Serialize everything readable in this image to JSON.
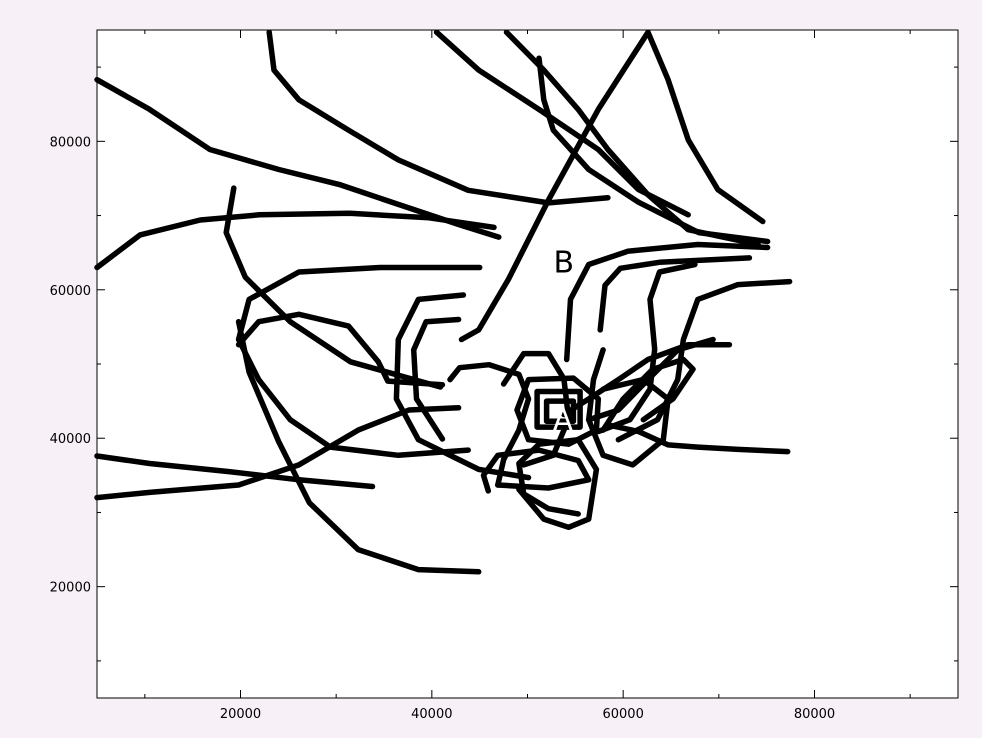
{
  "chart_data": {
    "type": "line",
    "color": "#000000",
    "xlim": [
      5000,
      95000
    ],
    "ylim": [
      5000,
      95000
    ],
    "xticks": [
      20000,
      40000,
      60000,
      80000
    ],
    "yticks": [
      20000,
      40000,
      60000,
      80000
    ],
    "xminor": [
      10000,
      30000,
      50000,
      70000,
      90000
    ],
    "yminor": [
      10000,
      30000,
      50000,
      70000,
      90000
    ],
    "annotations": [
      {
        "text": "A",
        "x": 53700,
        "y": 42500,
        "color": "#ffffff"
      },
      {
        "text": "B",
        "x": 53800,
        "y": 63800,
        "color": "#000000"
      }
    ],
    "series": [
      {
        "x": [
          5000,
          10500,
          16800,
          24000,
          30300,
          36500,
          42800,
          47000
        ],
        "values": [
          88300,
          84300,
          78900,
          76200,
          74200,
          71500,
          68800,
          67100
        ]
      },
      {
        "x": [
          5000,
          9500,
          15800,
          22000,
          31400,
          39700,
          46500
        ],
        "values": [
          63000,
          67400,
          69400,
          70100,
          70300,
          69700,
          68400
        ]
      },
      {
        "x": [
          23000,
          23500,
          26100,
          31300,
          36500,
          43800,
          52200,
          58400
        ],
        "values": [
          94700,
          89600,
          85600,
          81500,
          77500,
          73400,
          71700,
          72400
        ]
      },
      {
        "x": [
          40500,
          44900,
          51200,
          57400,
          61600,
          66800
        ],
        "values": [
          94700,
          89600,
          84300,
          78900,
          73500,
          70100
        ]
      },
      {
        "x": [
          47800,
          51700,
          55300,
          58400,
          62600,
          66800,
          74100
        ],
        "values": [
          94700,
          89600,
          84300,
          78900,
          72800,
          68100,
          66100
        ]
      },
      {
        "x": [
          51200,
          51700,
          52700,
          56400,
          61600,
          67900,
          75100
        ],
        "values": [
          91200,
          85600,
          81500,
          76200,
          71800,
          67700,
          66500
        ]
      },
      {
        "x": [
          43100,
          44900,
          48000,
          52200,
          57400,
          62600,
          64700,
          66800,
          69900,
          74600
        ],
        "values": [
          53300,
          54600,
          61400,
          72100,
          84300,
          94700,
          88300,
          80200,
          73500,
          69200
        ]
      },
      {
        "x": [
          54100,
          54500,
          56400,
          60500,
          67800,
          75100
        ],
        "values": [
          50600,
          58700,
          63400,
          65200,
          66100,
          65700
        ]
      },
      {
        "x": [
          57600,
          58100,
          59700,
          63800,
          73200
        ],
        "values": [
          54600,
          60600,
          62900,
          63700,
          64300
        ]
      },
      {
        "x": [
          19300,
          18500,
          20500,
          25200,
          31500,
          40900
        ],
        "values": [
          73700,
          67700,
          61700,
          55700,
          50300,
          46900
        ]
      },
      {
        "x": [
          45000,
          34600,
          26100,
          20900,
          19800,
          21900,
          25200,
          29400,
          36500,
          43800
        ],
        "values": [
          63000,
          63000,
          62400,
          58700,
          53300,
          47900,
          42500,
          38800,
          37700,
          38400
        ]
      },
      {
        "x": [
          19800,
          21900,
          26100,
          31300,
          34400,
          35400,
          41100
        ],
        "values": [
          52600,
          55700,
          56700,
          55100,
          50300,
          47700,
          47200
        ]
      },
      {
        "x": [
          19800,
          20900,
          24000,
          27200,
          32300,
          38600,
          44900
        ],
        "values": [
          55700,
          48900,
          39500,
          31300,
          25000,
          22300,
          22000
        ]
      },
      {
        "x": [
          5000,
          10500,
          18800,
          26100,
          33800
        ],
        "values": [
          37600,
          36600,
          35500,
          34400,
          33500
        ]
      },
      {
        "x": [
          5000,
          10500,
          19800,
          26100,
          32300,
          37600,
          42800
        ],
        "values": [
          32000,
          32700,
          33700,
          36400,
          41100,
          43800,
          44100
        ]
      },
      {
        "x": [
          43300,
          38600,
          36500,
          36300,
          38600,
          44900,
          50100
        ],
        "values": [
          59300,
          58700,
          53300,
          45300,
          39800,
          35800,
          34700
        ]
      },
      {
        "x": [
          42800,
          39400,
          38100,
          38400,
          41100
        ],
        "values": [
          56000,
          55700,
          51900,
          45300,
          39900
        ]
      },
      {
        "x": [
          77400,
          72000,
          67800,
          66300,
          65700,
          63600,
          59500
        ],
        "values": [
          61100,
          60700,
          58700,
          53300,
          47900,
          42500,
          39800
        ]
      },
      {
        "x": [
          67500,
          63800,
          62800,
          63300,
          62800,
          60700,
          57400
        ],
        "values": [
          63400,
          62400,
          58700,
          52000,
          46600,
          42500,
          40900
        ]
      },
      {
        "x": [
          77200,
          72000,
          67800,
          64700,
          61600,
          58400
        ],
        "values": [
          38200,
          38500,
          38800,
          39100,
          40900,
          41800
        ]
      },
      {
        "x": [
          71100,
          66800,
          62600,
          59500,
          56400,
          53800
        ],
        "values": [
          52600,
          52600,
          50600,
          47900,
          45300,
          43200
        ]
      },
      {
        "x": [
          69400,
          65700,
          62600,
          59500,
          56400
        ],
        "values": [
          53300,
          51900,
          47900,
          43800,
          42500
        ]
      },
      {
        "x": [
          55300,
          52200,
          49600,
          49100,
          51200,
          55300,
          57200,
          56400,
          54300,
          51700,
          49100
        ],
        "values": [
          29800,
          30500,
          32500,
          36600,
          39200,
          39800,
          35800,
          29100,
          28000,
          29100,
          33100
        ]
      },
      {
        "x": [
          45900,
          45400,
          46900,
          51200,
          55300,
          56400,
          52200,
          46900
        ],
        "values": [
          32900,
          35000,
          37700,
          38400,
          37000,
          34400,
          33300,
          33700
        ]
      },
      {
        "x": [
          41900,
          42900,
          46000,
          49100,
          50100,
          49100,
          47500,
          46900
        ],
        "values": [
          47900,
          49500,
          49900,
          48600,
          45300,
          41100,
          37100,
          33700
        ]
      },
      {
        "x": [
          47500,
          49600,
          52200,
          53800,
          54300,
          52700,
          49600
        ],
        "values": [
          47300,
          51400,
          51400,
          48000,
          42600,
          37700,
          36400
        ]
      },
      {
        "x": [
          57900,
          56900,
          56400,
          57900,
          61000,
          64200,
          64700,
          62100,
          57900
        ],
        "values": [
          51900,
          47900,
          42500,
          37700,
          36400,
          39800,
          45300,
          47900,
          46600
        ]
      },
      {
        "x": [
          57900,
          60000,
          63100,
          66300,
          67300,
          65200,
          62100
        ],
        "values": [
          41100,
          45300,
          49300,
          50600,
          49300,
          45300,
          42500
        ]
      },
      {
        "x": [
          50100,
          54800,
          57400,
          57200,
          54300,
          50100,
          48900,
          50100
        ],
        "values": [
          47900,
          48100,
          45300,
          41100,
          39200,
          39800,
          43800,
          47900
        ]
      },
      {
        "x": [
          51000,
          55500,
          55500,
          51000,
          51000
        ],
        "values": [
          46300,
          46300,
          41500,
          41500,
          46300
        ]
      },
      {
        "x": [
          52000,
          54800,
          54800,
          52000,
          52000
        ],
        "values": [
          45000,
          45000,
          42300,
          42300,
          45000
        ]
      }
    ]
  }
}
